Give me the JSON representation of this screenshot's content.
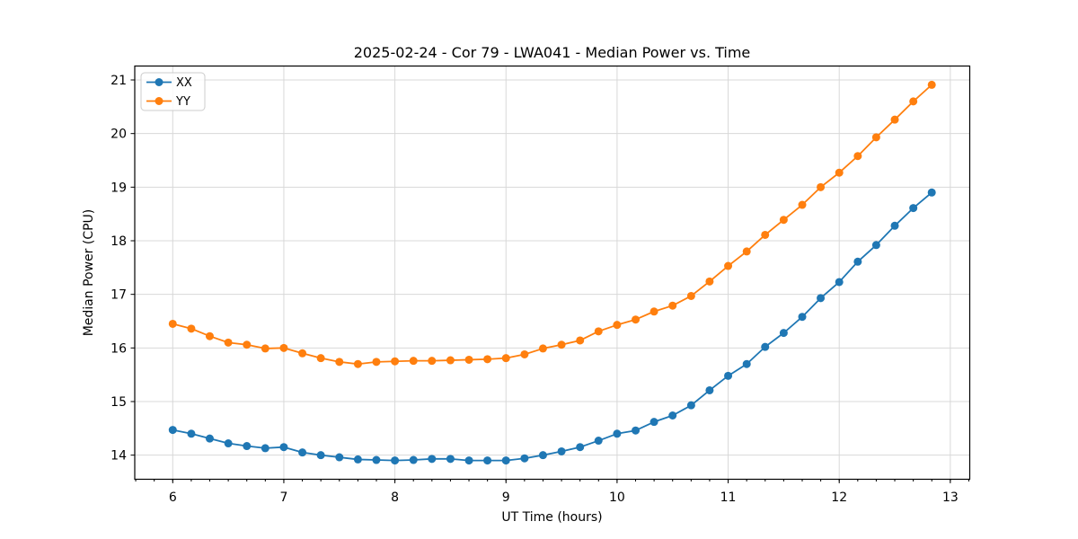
{
  "chart_data": {
    "type": "line",
    "title": "2025-02-24 - Cor 79 - LWA041 - Median Power vs. Time",
    "xlabel": "UT Time (hours)",
    "ylabel": "Median Power (CPU)",
    "xlim": [
      5.658,
      13.175
    ],
    "ylim": [
      13.55,
      21.26
    ],
    "xticks": [
      6,
      7,
      8,
      9,
      10,
      11,
      12,
      13
    ],
    "yticks": [
      14,
      15,
      16,
      17,
      18,
      19,
      20,
      21
    ],
    "x_minor_step": 0.1666667,
    "grid": true,
    "grid_color": "#d8d8d8",
    "legend_position": "upper-left",
    "x": [
      6.0,
      6.167,
      6.333,
      6.5,
      6.667,
      6.833,
      7.0,
      7.167,
      7.333,
      7.5,
      7.667,
      7.833,
      8.0,
      8.167,
      8.333,
      8.5,
      8.667,
      8.833,
      9.0,
      9.167,
      9.333,
      9.5,
      9.667,
      9.833,
      10.0,
      10.167,
      10.333,
      10.5,
      10.667,
      10.833,
      11.0,
      11.167,
      11.333,
      11.5,
      11.667,
      11.833,
      12.0,
      12.167,
      12.333,
      12.5,
      12.667,
      12.833
    ],
    "series": [
      {
        "name": "XX",
        "color": "#1f77b4",
        "values": [
          14.47,
          14.4,
          14.31,
          14.22,
          14.17,
          14.13,
          14.15,
          14.05,
          14.0,
          13.96,
          13.92,
          13.91,
          13.9,
          13.91,
          13.93,
          13.93,
          13.9,
          13.9,
          13.9,
          13.94,
          14.0,
          14.07,
          14.15,
          14.27,
          14.4,
          14.46,
          14.62,
          14.74,
          14.93,
          15.21,
          15.48,
          15.7,
          16.02,
          16.28,
          16.58,
          16.93,
          17.23,
          17.61,
          17.92,
          18.28,
          18.61,
          18.9
        ]
      },
      {
        "name": "YY",
        "color": "#ff7f0e",
        "values": [
          16.45,
          16.36,
          16.22,
          16.1,
          16.06,
          15.99,
          16.0,
          15.9,
          15.81,
          15.74,
          15.7,
          15.74,
          15.75,
          15.76,
          15.76,
          15.77,
          15.78,
          15.79,
          15.81,
          15.88,
          15.99,
          16.06,
          16.14,
          16.31,
          16.43,
          16.53,
          16.68,
          16.79,
          16.97,
          17.24,
          17.53,
          17.8,
          18.11,
          18.39,
          18.67,
          19.0,
          19.27,
          19.58,
          19.93,
          20.26,
          20.6,
          20.91
        ]
      }
    ]
  }
}
